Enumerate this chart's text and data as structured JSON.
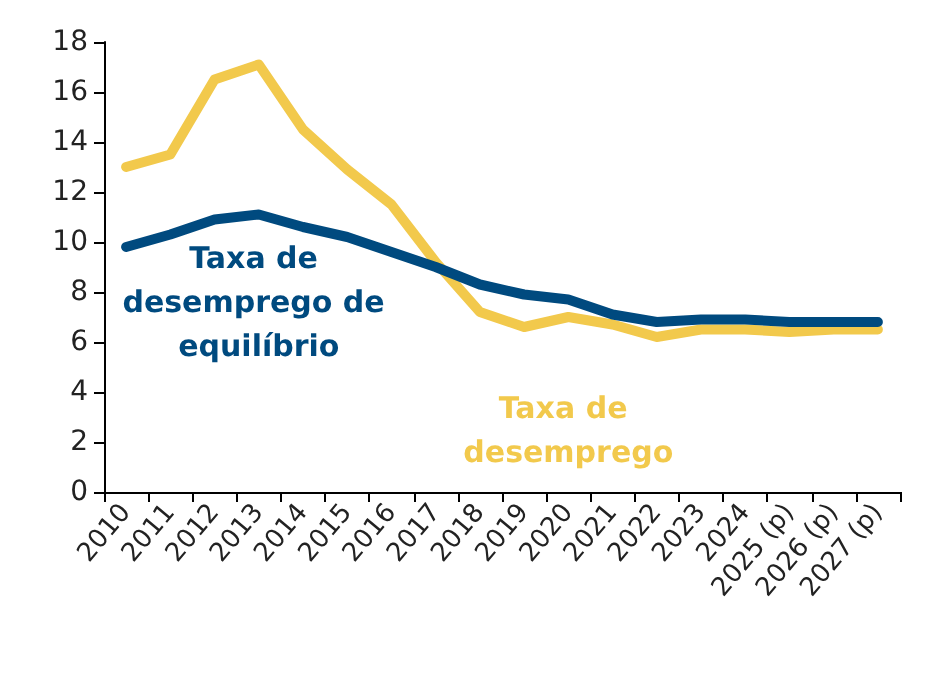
{
  "chart_data": {
    "type": "line",
    "categories": [
      "2010",
      "2011",
      "2012",
      "2013",
      "2014",
      "2015",
      "2016",
      "2017",
      "2018",
      "2019",
      "2020",
      "2021",
      "2022",
      "2023",
      "2024",
      "2025 (p)",
      "2026 (p)",
      "2027 (p)"
    ],
    "series": [
      {
        "name": "Taxa de desemprego",
        "color": "#f2c94c",
        "values": [
          13.0,
          13.5,
          16.5,
          17.1,
          14.5,
          12.9,
          11.5,
          9.2,
          7.2,
          6.6,
          7.0,
          6.7,
          6.2,
          6.5,
          6.5,
          6.4,
          6.5,
          6.5
        ]
      },
      {
        "name": "Taxa de desemprego de equilíbrio",
        "color": "#004a7f",
        "values": [
          9.8,
          10.3,
          10.9,
          11.1,
          10.6,
          10.2,
          9.6,
          9.0,
          8.3,
          7.9,
          7.7,
          7.1,
          6.8,
          6.9,
          6.9,
          6.8,
          6.8,
          6.8
        ]
      }
    ],
    "ylim": [
      0,
      18
    ],
    "yticks": [
      0,
      2,
      4,
      6,
      8,
      10,
      12,
      14,
      16,
      18
    ],
    "grid": false,
    "legend": false,
    "marker": "none",
    "line_style": "solid"
  }
}
